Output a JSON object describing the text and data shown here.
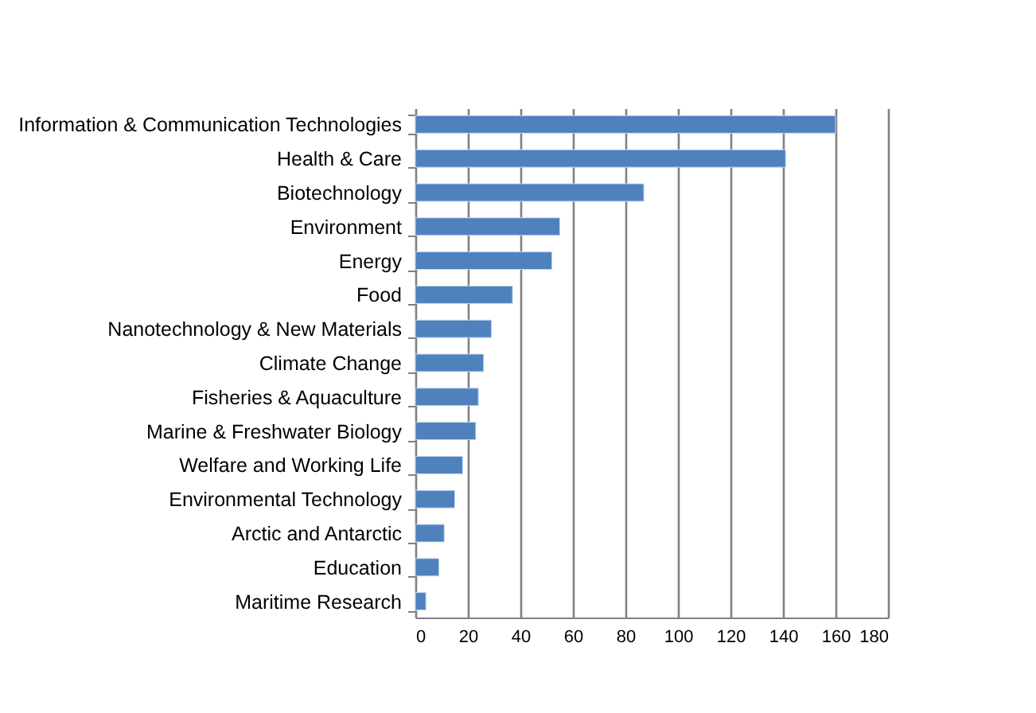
{
  "chart_data": {
    "type": "bar",
    "orientation": "horizontal",
    "categories": [
      "Information & Communication Technologies",
      "Health & Care",
      "Biotechnology",
      "Environment",
      "Energy",
      "Food",
      "Nanotechnology & New Materials",
      "Climate Change",
      "Fisheries & Aquaculture",
      "Marine & Freshwater Biology",
      "Welfare and Working Life",
      "Environmental Technology",
      "Arctic and Antarctic",
      "Education",
      "Maritime Research"
    ],
    "values": [
      160,
      141,
      87,
      55,
      52,
      37,
      29,
      26,
      24,
      23,
      18,
      15,
      11,
      9,
      4
    ],
    "color": "#4f81bd",
    "xlim": [
      0,
      180
    ],
    "xticks": [
      0,
      20,
      40,
      60,
      80,
      100,
      120,
      140,
      160,
      180
    ],
    "grid": "x"
  }
}
